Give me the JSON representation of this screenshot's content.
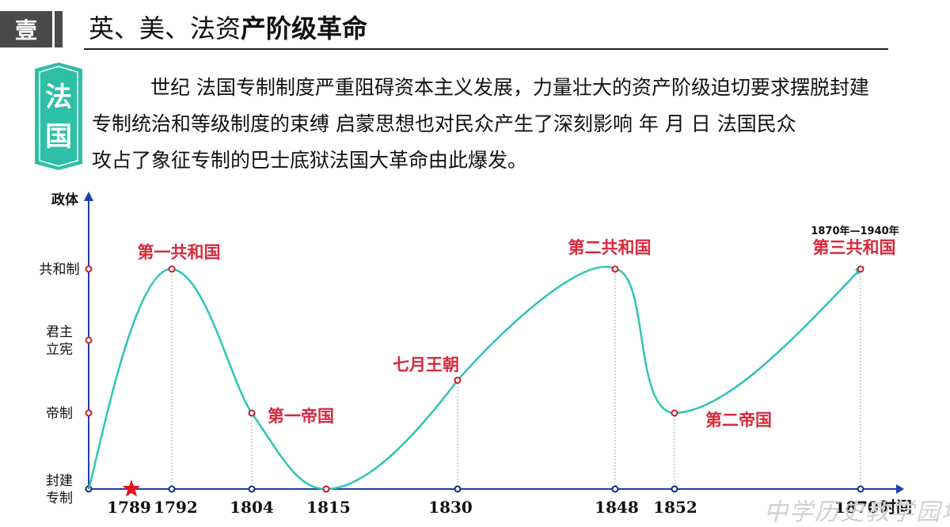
{
  "header": {
    "badge": "壹",
    "title_light": "英、美、法资",
    "title_bold": "产阶级革命"
  },
  "tag": {
    "line1": "法",
    "line2": "国"
  },
  "paragraph": {
    "line1": "世纪 法国专制制度严重阻碍资本主义发展，力量壮大的资产阶级迫切要求摆脱封建",
    "line2": "专制统治和等级制度的束缚 启蒙思想也对民众产生了深刻影响        年  月   日 法国民众",
    "line3": "攻占了象征专制的巴士底狱法国大革命由此爆发。"
  },
  "watermark": "中学历史教学园地",
  "colors": {
    "curve": "#2ec4b6",
    "axis": "#1f3fa8",
    "label": "#d8283c",
    "marker_y": "#c0202a",
    "star": "#e2141c"
  },
  "chart_data": {
    "type": "line",
    "title": "",
    "xlabel": "时间",
    "ylabel": "政体",
    "categories_y": [
      "封建专制",
      "帝制",
      "君主立宪",
      "共和制"
    ],
    "y_labels": [
      "封建\n专制",
      "帝制",
      "君主\n立宪",
      "共和制"
    ],
    "x_ticks": [
      "1789",
      "1792",
      "1804",
      "1815",
      "1830",
      "1848",
      "1852",
      "1870"
    ],
    "x_tick_labels": [
      "1789",
      "1792",
      "1804",
      "1815",
      "1830",
      "1848",
      "1852",
      "1870"
    ],
    "x": [
      1789,
      1792,
      1804,
      1815,
      1830,
      1848,
      1852,
      1870
    ],
    "values": [
      0,
      3,
      1,
      0,
      1.45,
      3,
      1,
      3
    ],
    "star_year": 1792,
    "annotations": [
      {
        "text": "第一共和国",
        "x": 1792,
        "y": 3
      },
      {
        "text": "第一帝国",
        "x": 1804,
        "y": 1
      },
      {
        "text": "七月王朝",
        "x": 1830,
        "y": 1.45
      },
      {
        "text": "第二共和国",
        "x": 1848,
        "y": 3
      },
      {
        "text": "第二帝国",
        "x": 1852,
        "y": 1
      },
      {
        "text": "第三共和国",
        "x": 1870,
        "y": 3
      }
    ],
    "note": "1870年—1940年"
  }
}
